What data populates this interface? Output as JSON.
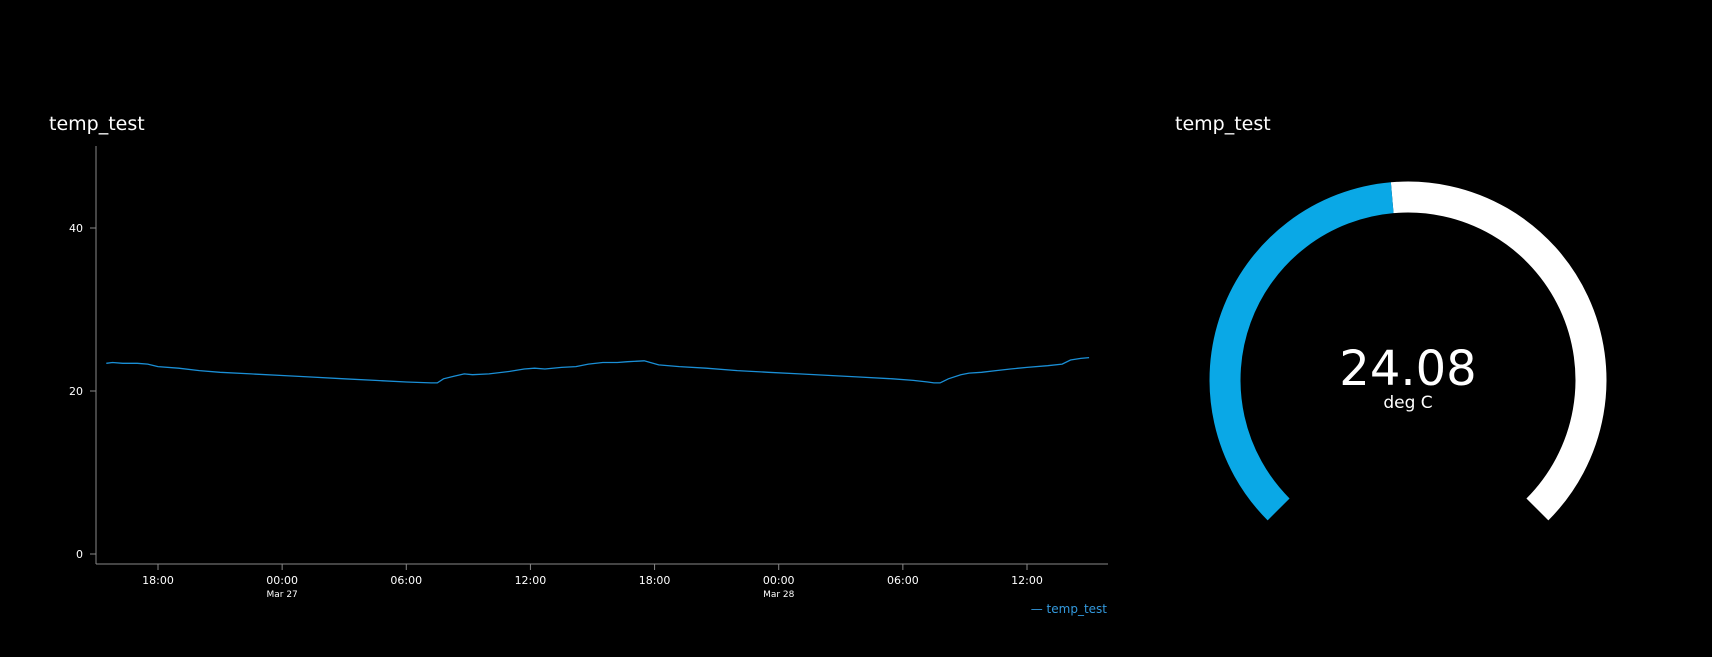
{
  "chart_panel": {
    "title": "temp_test"
  },
  "gauge_panel": {
    "title": "temp_test",
    "value_text": "24.08",
    "unit": "deg C"
  },
  "colors": {
    "series": "#1a8fd6",
    "gauge_fill": "#0aa8e6",
    "gauge_track": "#ffffff",
    "axis": "#888888"
  },
  "chart_data": [
    {
      "type": "line",
      "title": "temp_test",
      "x_start": "Mar 26 15:30",
      "x_end": "Mar 28 15:00",
      "xlim_hours": [
        0,
        47.5
      ],
      "ylim": [
        0,
        50
      ],
      "yticks": [
        {
          "value": 0,
          "label": "0"
        },
        {
          "value": 20,
          "label": "20"
        },
        {
          "value": 40,
          "label": "40"
        }
      ],
      "xticks": [
        {
          "hours": 2.5,
          "label": "18:00",
          "sub": ""
        },
        {
          "hours": 8.5,
          "label": "00:00",
          "sub": "Mar 27"
        },
        {
          "hours": 14.5,
          "label": "06:00",
          "sub": ""
        },
        {
          "hours": 20.5,
          "label": "12:00",
          "sub": ""
        },
        {
          "hours": 26.5,
          "label": "18:00",
          "sub": ""
        },
        {
          "hours": 32.5,
          "label": "00:00",
          "sub": "Mar 28"
        },
        {
          "hours": 38.5,
          "label": "06:00",
          "sub": ""
        },
        {
          "hours": 44.5,
          "label": "12:00",
          "sub": ""
        }
      ],
      "legend": "— temp_test",
      "series": [
        {
          "name": "temp_test",
          "x_hours": [
            0,
            0.3,
            0.8,
            1.5,
            2.0,
            2.5,
            3.5,
            4.5,
            5.5,
            7,
            8.5,
            10,
            11.5,
            13,
            14.5,
            15.7,
            16.0,
            16.3,
            16.8,
            17.3,
            17.7,
            18.5,
            19.5,
            20.2,
            20.7,
            21.2,
            22.0,
            22.7,
            23.3,
            24.0,
            24.7,
            25.2,
            26.0,
            26.7,
            27.7,
            29,
            30.5,
            32,
            33.5,
            35,
            36.5,
            38,
            39.0,
            39.7,
            40.0,
            40.3,
            40.7,
            41.3,
            41.7,
            42.3,
            43.0,
            43.7,
            44.5,
            45.5,
            46.2,
            46.6,
            47.1,
            47.5
          ],
          "y": [
            23.4,
            23.5,
            23.4,
            23.4,
            23.3,
            23.0,
            22.8,
            22.5,
            22.3,
            22.1,
            21.9,
            21.7,
            21.5,
            21.3,
            21.1,
            21.0,
            21.0,
            21.5,
            21.8,
            22.1,
            22.0,
            22.1,
            22.4,
            22.7,
            22.8,
            22.7,
            22.9,
            23.0,
            23.3,
            23.5,
            23.5,
            23.6,
            23.7,
            23.2,
            23.0,
            22.8,
            22.5,
            22.3,
            22.1,
            21.9,
            21.7,
            21.5,
            21.3,
            21.1,
            21.0,
            21.0,
            21.5,
            22.0,
            22.2,
            22.3,
            22.5,
            22.7,
            22.9,
            23.1,
            23.3,
            23.8,
            24.0,
            24.1
          ]
        }
      ]
    },
    {
      "type": "gauge",
      "title": "temp_test",
      "value": 24.08,
      "unit": "deg C",
      "min": 0,
      "max": 50
    }
  ]
}
